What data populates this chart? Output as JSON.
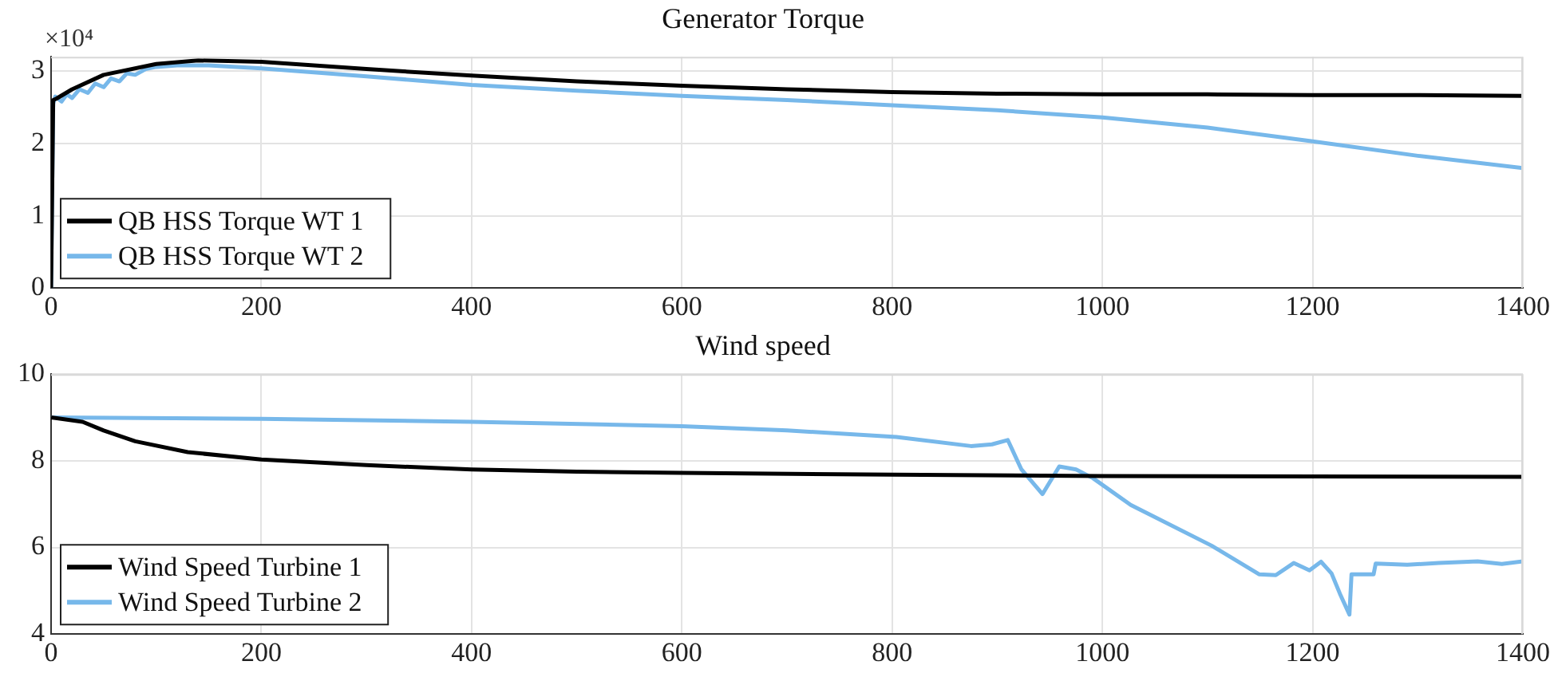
{
  "chart_data": [
    {
      "type": "line",
      "title": "Generator Torque",
      "annotations": [
        "×10⁴"
      ],
      "legend": "bottom left",
      "grid": true,
      "line_style": "solid",
      "marker": "none",
      "xlim": [
        0,
        1400
      ],
      "xticks": [
        0,
        200,
        400,
        600,
        800,
        1000,
        1200,
        1400
      ],
      "ylim": [
        0,
        3.2
      ],
      "yticks": [
        0,
        1,
        2,
        3
      ],
      "series": [
        {
          "name": "QB HSS Torque WT 1",
          "color": "#000000",
          "x": [
            0,
            2,
            5,
            20,
            50,
            100,
            140,
            200,
            300,
            400,
            500,
            600,
            700,
            800,
            900,
            1000,
            1100,
            1200,
            1300,
            1400
          ],
          "values": [
            0,
            2.6,
            2.62,
            2.75,
            2.95,
            3.1,
            3.15,
            3.13,
            3.03,
            2.94,
            2.86,
            2.8,
            2.75,
            2.71,
            2.69,
            2.68,
            2.68,
            2.67,
            2.67,
            2.66
          ]
        },
        {
          "name": "QB HSS Torque WT 2",
          "color": "#77b8ea",
          "x": [
            0,
            2,
            4,
            10,
            15,
            20,
            27,
            35,
            42,
            50,
            57,
            65,
            72,
            80,
            90,
            100,
            120,
            150,
            200,
            300,
            400,
            500,
            600,
            700,
            800,
            900,
            1000,
            1100,
            1200,
            1300,
            1400
          ],
          "values": [
            0,
            2.55,
            2.65,
            2.58,
            2.68,
            2.63,
            2.75,
            2.7,
            2.83,
            2.78,
            2.9,
            2.86,
            2.97,
            2.95,
            3.03,
            3.06,
            3.08,
            3.08,
            3.04,
            2.93,
            2.81,
            2.73,
            2.66,
            2.6,
            2.53,
            2.46,
            2.36,
            2.22,
            2.03,
            1.83,
            1.66
          ]
        }
      ]
    },
    {
      "type": "line",
      "title": "Wind speed",
      "legend": "bottom left",
      "grid": true,
      "line_style": "solid",
      "marker": "none",
      "xlim": [
        0,
        1400
      ],
      "xticks": [
        0,
        200,
        400,
        600,
        800,
        1000,
        1200,
        1400
      ],
      "ylim": [
        4,
        10
      ],
      "yticks": [
        4,
        6,
        8,
        10
      ],
      "series": [
        {
          "name": "Wind Speed Turbine 1",
          "color": "#000000",
          "x": [
            0,
            30,
            50,
            80,
            130,
            200,
            300,
            400,
            500,
            600,
            800,
            1000,
            1200,
            1400
          ],
          "values": [
            9,
            8.9,
            8.7,
            8.45,
            8.2,
            8.03,
            7.9,
            7.8,
            7.75,
            7.72,
            7.68,
            7.65,
            7.64,
            7.63
          ]
        },
        {
          "name": "Wind Speed Turbine 2",
          "color": "#77b8ea",
          "x": [
            0,
            200,
            400,
            600,
            700,
            804,
            875,
            895,
            910,
            923,
            943,
            959,
            975,
            991,
            1027,
            1104,
            1149,
            1165,
            1182,
            1197,
            1208,
            1218,
            1226,
            1235,
            1237,
            1258,
            1260,
            1290,
            1320,
            1357,
            1380,
            1400
          ],
          "values": [
            9,
            8.97,
            8.9,
            8.8,
            8.7,
            8.55,
            8.34,
            8.38,
            8.48,
            7.8,
            7.23,
            7.87,
            7.8,
            7.6,
            6.98,
            6.04,
            5.38,
            5.36,
            5.64,
            5.47,
            5.67,
            5.4,
            4.93,
            4.45,
            5.38,
            5.38,
            5.63,
            5.6,
            5.64,
            5.68,
            5.62,
            5.68
          ]
        }
      ]
    }
  ]
}
